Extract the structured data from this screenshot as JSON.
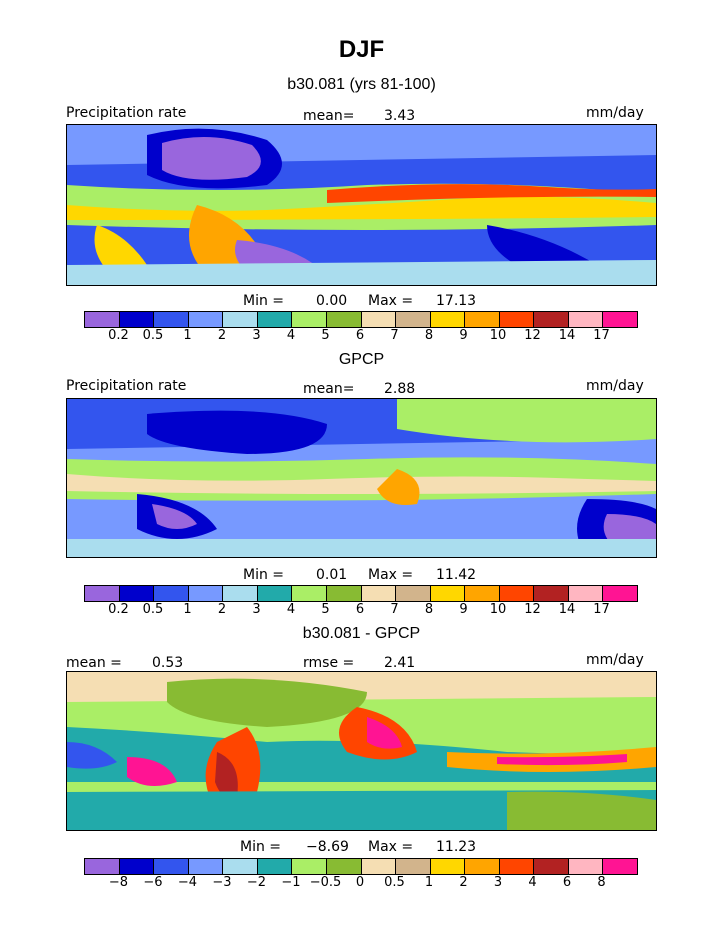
{
  "figure": {
    "title": "DJF"
  },
  "panels": [
    {
      "heading": "b30.081 (yrs 81-100)",
      "left_label": "Precipitation rate",
      "center_label": "mean=",
      "center_value": "3.43",
      "right_label": "mm/day",
      "minmax": {
        "min_label": "Min =",
        "min": "0.00",
        "max_label": "Max =",
        "max": "17.13"
      },
      "colorbar": {
        "colors": [
          "#9966dd",
          "#0000cc",
          "#3355ee",
          "#7799ff",
          "#aaddee",
          "#22aaaa",
          "#aaee66",
          "#88bb33",
          "#f5deb3",
          "#d2b48c",
          "#ffd700",
          "#ffa500",
          "#ff4500",
          "#b22222",
          "#ffb6c1",
          "#ff1493"
        ],
        "ticks": [
          "0.2",
          "0.5",
          "1",
          "2",
          "3",
          "4",
          "5",
          "6",
          "7",
          "8",
          "9",
          "10",
          "12",
          "14",
          "17"
        ]
      }
    },
    {
      "heading": "GPCP",
      "left_label": "Precipitation rate",
      "center_label": "mean=",
      "center_value": "2.88",
      "right_label": "mm/day",
      "minmax": {
        "min_label": "Min =",
        "min": "0.01",
        "max_label": "Max =",
        "max": "11.42"
      },
      "colorbar": {
        "colors": [
          "#9966dd",
          "#0000cc",
          "#3355ee",
          "#7799ff",
          "#aaddee",
          "#22aaaa",
          "#aaee66",
          "#88bb33",
          "#f5deb3",
          "#d2b48c",
          "#ffd700",
          "#ffa500",
          "#ff4500",
          "#b22222",
          "#ffb6c1",
          "#ff1493"
        ],
        "ticks": [
          "0.2",
          "0.5",
          "1",
          "2",
          "3",
          "4",
          "5",
          "6",
          "7",
          "8",
          "9",
          "10",
          "12",
          "14",
          "17"
        ]
      }
    },
    {
      "heading": "b30.081 - GPCP",
      "left_label": "mean =",
      "left_value": "0.53",
      "center_label": "rmse =",
      "center_value": "2.41",
      "right_label": "mm/day",
      "minmax": {
        "min_label": "Min =",
        "min": "−8.69",
        "max_label": "Max =",
        "max": "11.23"
      },
      "colorbar": {
        "colors": [
          "#9966dd",
          "#0000cc",
          "#3355ee",
          "#7799ff",
          "#aaddee",
          "#22aaaa",
          "#aaee66",
          "#88bb33",
          "#f5deb3",
          "#d2b48c",
          "#ffd700",
          "#ffa500",
          "#ff4500",
          "#b22222",
          "#ffb6c1",
          "#ff1493"
        ],
        "ticks": [
          "−8",
          "−6",
          "−4",
          "−3",
          "−2",
          "−1",
          "−0.5",
          "0",
          "0.5",
          "1",
          "2",
          "3",
          "4",
          "6",
          "8"
        ]
      }
    }
  ]
}
